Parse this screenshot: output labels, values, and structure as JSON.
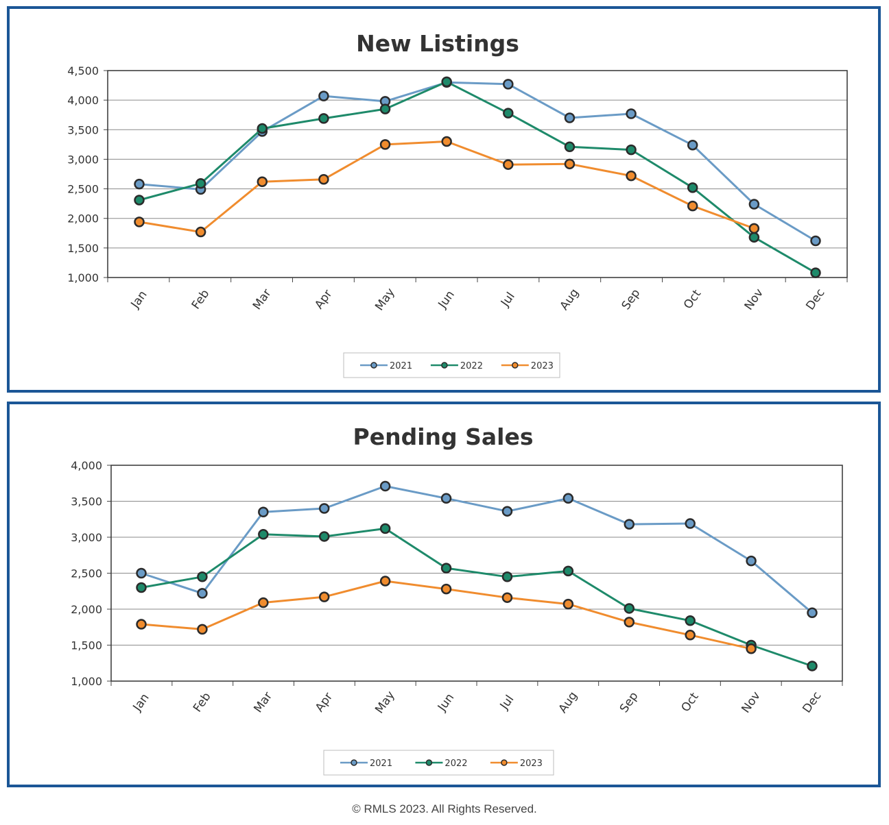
{
  "colors": {
    "border": "#1b5696",
    "2021": "#6a9bc6",
    "2022": "#1e8a6a",
    "2023": "#f08c2e"
  },
  "footer": "© RMLS 2023. All Rights Reserved.",
  "chart_data": [
    {
      "type": "line",
      "title": "New Listings",
      "categories": [
        "Jan",
        "Feb",
        "Mar",
        "Apr",
        "May",
        "Jun",
        "Jul",
        "Aug",
        "Sep",
        "Oct",
        "Nov",
        "Dec"
      ],
      "yticks": [
        "1,000",
        "1,500",
        "2,000",
        "2,500",
        "3,000",
        "3,500",
        "4,000",
        "4,500"
      ],
      "ylim": [
        1000,
        4500
      ],
      "grid": true,
      "legend_position": "bottom",
      "series": [
        {
          "name": "2021",
          "color": "#6a9bc6",
          "values": [
            2580,
            2490,
            3470,
            4070,
            3980,
            4300,
            4270,
            3700,
            3770,
            3240,
            2240,
            1620
          ]
        },
        {
          "name": "2022",
          "color": "#1e8a6a",
          "values": [
            2310,
            2590,
            3520,
            3690,
            3850,
            4310,
            3780,
            3210,
            3160,
            2520,
            1680,
            1080
          ]
        },
        {
          "name": "2023",
          "color": "#f08c2e",
          "values": [
            1940,
            1770,
            2620,
            2660,
            3250,
            3300,
            2910,
            2920,
            2720,
            2210,
            1830,
            null
          ]
        }
      ]
    },
    {
      "type": "line",
      "title": "Pending Sales",
      "categories": [
        "Jan",
        "Feb",
        "Mar",
        "Apr",
        "May",
        "Jun",
        "Jul",
        "Aug",
        "Sep",
        "Oct",
        "Nov",
        "Dec"
      ],
      "yticks": [
        "1,000",
        "1,500",
        "2,000",
        "2,500",
        "3,000",
        "3,500",
        "4,000"
      ],
      "ylim": [
        1000,
        4000
      ],
      "grid": true,
      "legend_position": "bottom",
      "series": [
        {
          "name": "2021",
          "color": "#6a9bc6",
          "values": [
            2500,
            2220,
            3350,
            3400,
            3710,
            3540,
            3360,
            3540,
            3180,
            3190,
            2670,
            1950
          ]
        },
        {
          "name": "2022",
          "color": "#1e8a6a",
          "values": [
            2300,
            2450,
            3040,
            3010,
            3120,
            2570,
            2450,
            2530,
            2010,
            1840,
            1500,
            1210
          ]
        },
        {
          "name": "2023",
          "color": "#f08c2e",
          "values": [
            1790,
            1720,
            2090,
            2170,
            2390,
            2280,
            2160,
            2070,
            1820,
            1640,
            1450,
            null
          ]
        }
      ]
    }
  ]
}
